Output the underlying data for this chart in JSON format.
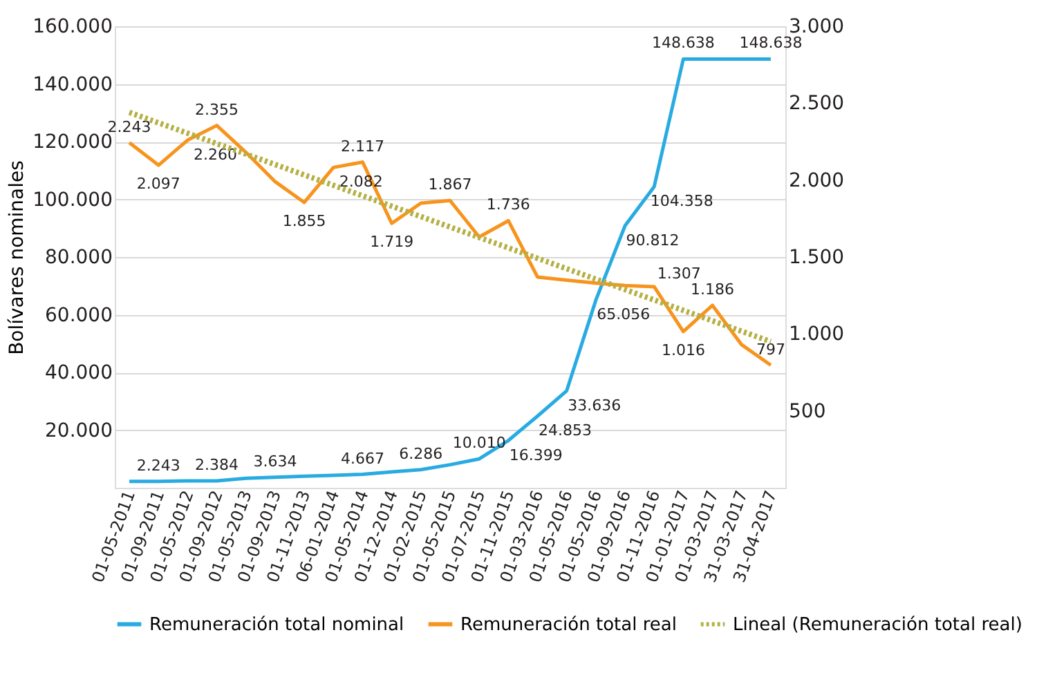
{
  "chart_data": {
    "type": "line",
    "ylabel": "Bolívares nominales",
    "categories": [
      "01-05-2011",
      "01-09-2011",
      "01-05-2012",
      "01-09-2012",
      "01-05-2013",
      "01-09-2013",
      "01-11-2013",
      "06-01-2014",
      "01-05-2014",
      "01-12-2014",
      "01-02-2015",
      "01-05-2015",
      "01-07-2015",
      "01-11-2015",
      "01-03-2016",
      "01-05-2016",
      "01-05-2016",
      "01-09-2016",
      "01-11-2016",
      "01-01-2017",
      "01-03-2017",
      "31-03-2017",
      "31-04-2017"
    ],
    "series": [
      {
        "name": "Remuneración total nominal",
        "color": "#29abe2",
        "axis": "y",
        "values": [
          2243,
          2243,
          2384,
          2384,
          3300,
          3634,
          4000,
          4300,
          4667,
          5500,
          6286,
          8000,
          10010,
          16399,
          24853,
          33636,
          65056,
          90812,
          104358,
          148638,
          148638,
          148638,
          148638
        ],
        "value_labels": [
          null,
          "2.243",
          null,
          "2.384",
          null,
          "3.634",
          null,
          null,
          "4.667",
          null,
          "6.286",
          null,
          "10.010",
          "16.399",
          "24.853",
          "33.636",
          "65.056",
          "90.812",
          "104.358",
          "148.638",
          null,
          null,
          "148.638"
        ]
      },
      {
        "name": "Remuneración total real",
        "color": "#f7941d",
        "axis": "y2",
        "values": [
          2243,
          2097,
          2260,
          2355,
          2180,
          1990,
          1855,
          2082,
          2117,
          1719,
          1850,
          1867,
          1630,
          1736,
          1370,
          1350,
          1330,
          1315,
          1307,
          1016,
          1186,
          930,
          797
        ],
        "value_labels": [
          "2.243",
          "2.097",
          "2.260",
          "2.355",
          null,
          null,
          "1.855",
          "2.082",
          "2.117",
          "1.719",
          null,
          "1.867",
          null,
          "1.736",
          null,
          null,
          null,
          null,
          "1.307",
          "1.016",
          "1.186",
          null,
          "797"
        ]
      },
      {
        "name": "Lineal (Remuneración total real)",
        "color": "#b5b045",
        "axis": "y2",
        "line_style": "dotted",
        "values": [
          2440,
          null,
          null,
          null,
          null,
          null,
          null,
          null,
          null,
          null,
          null,
          null,
          null,
          null,
          null,
          null,
          null,
          null,
          null,
          null,
          null,
          null,
          950
        ]
      }
    ],
    "ylim": [
      0,
      160000
    ],
    "yticks": [
      {
        "value": 20000,
        "label": "20.000"
      },
      {
        "value": 40000,
        "label": "40.000"
      },
      {
        "value": 60000,
        "label": "60.000"
      },
      {
        "value": 80000,
        "label": "80.000"
      },
      {
        "value": 100000,
        "label": "100.000"
      },
      {
        "value": 120000,
        "label": "120.000"
      },
      {
        "value": 140000,
        "label": "140.000"
      },
      {
        "value": 160000,
        "label": "160.000"
      }
    ],
    "y2lim": [
      0,
      3000
    ],
    "y2ticks": [
      500,
      {
        "value": 1000,
        "label": "1.000"
      },
      {
        "value": 1500,
        "label": "1.500"
      },
      {
        "value": 2000,
        "label": "2.000"
      },
      {
        "value": 2500,
        "label": "2.500"
      },
      {
        "value": 3000,
        "label": "3.000"
      }
    ],
    "grid": "y",
    "legend": "bottom",
    "marker": "none"
  }
}
